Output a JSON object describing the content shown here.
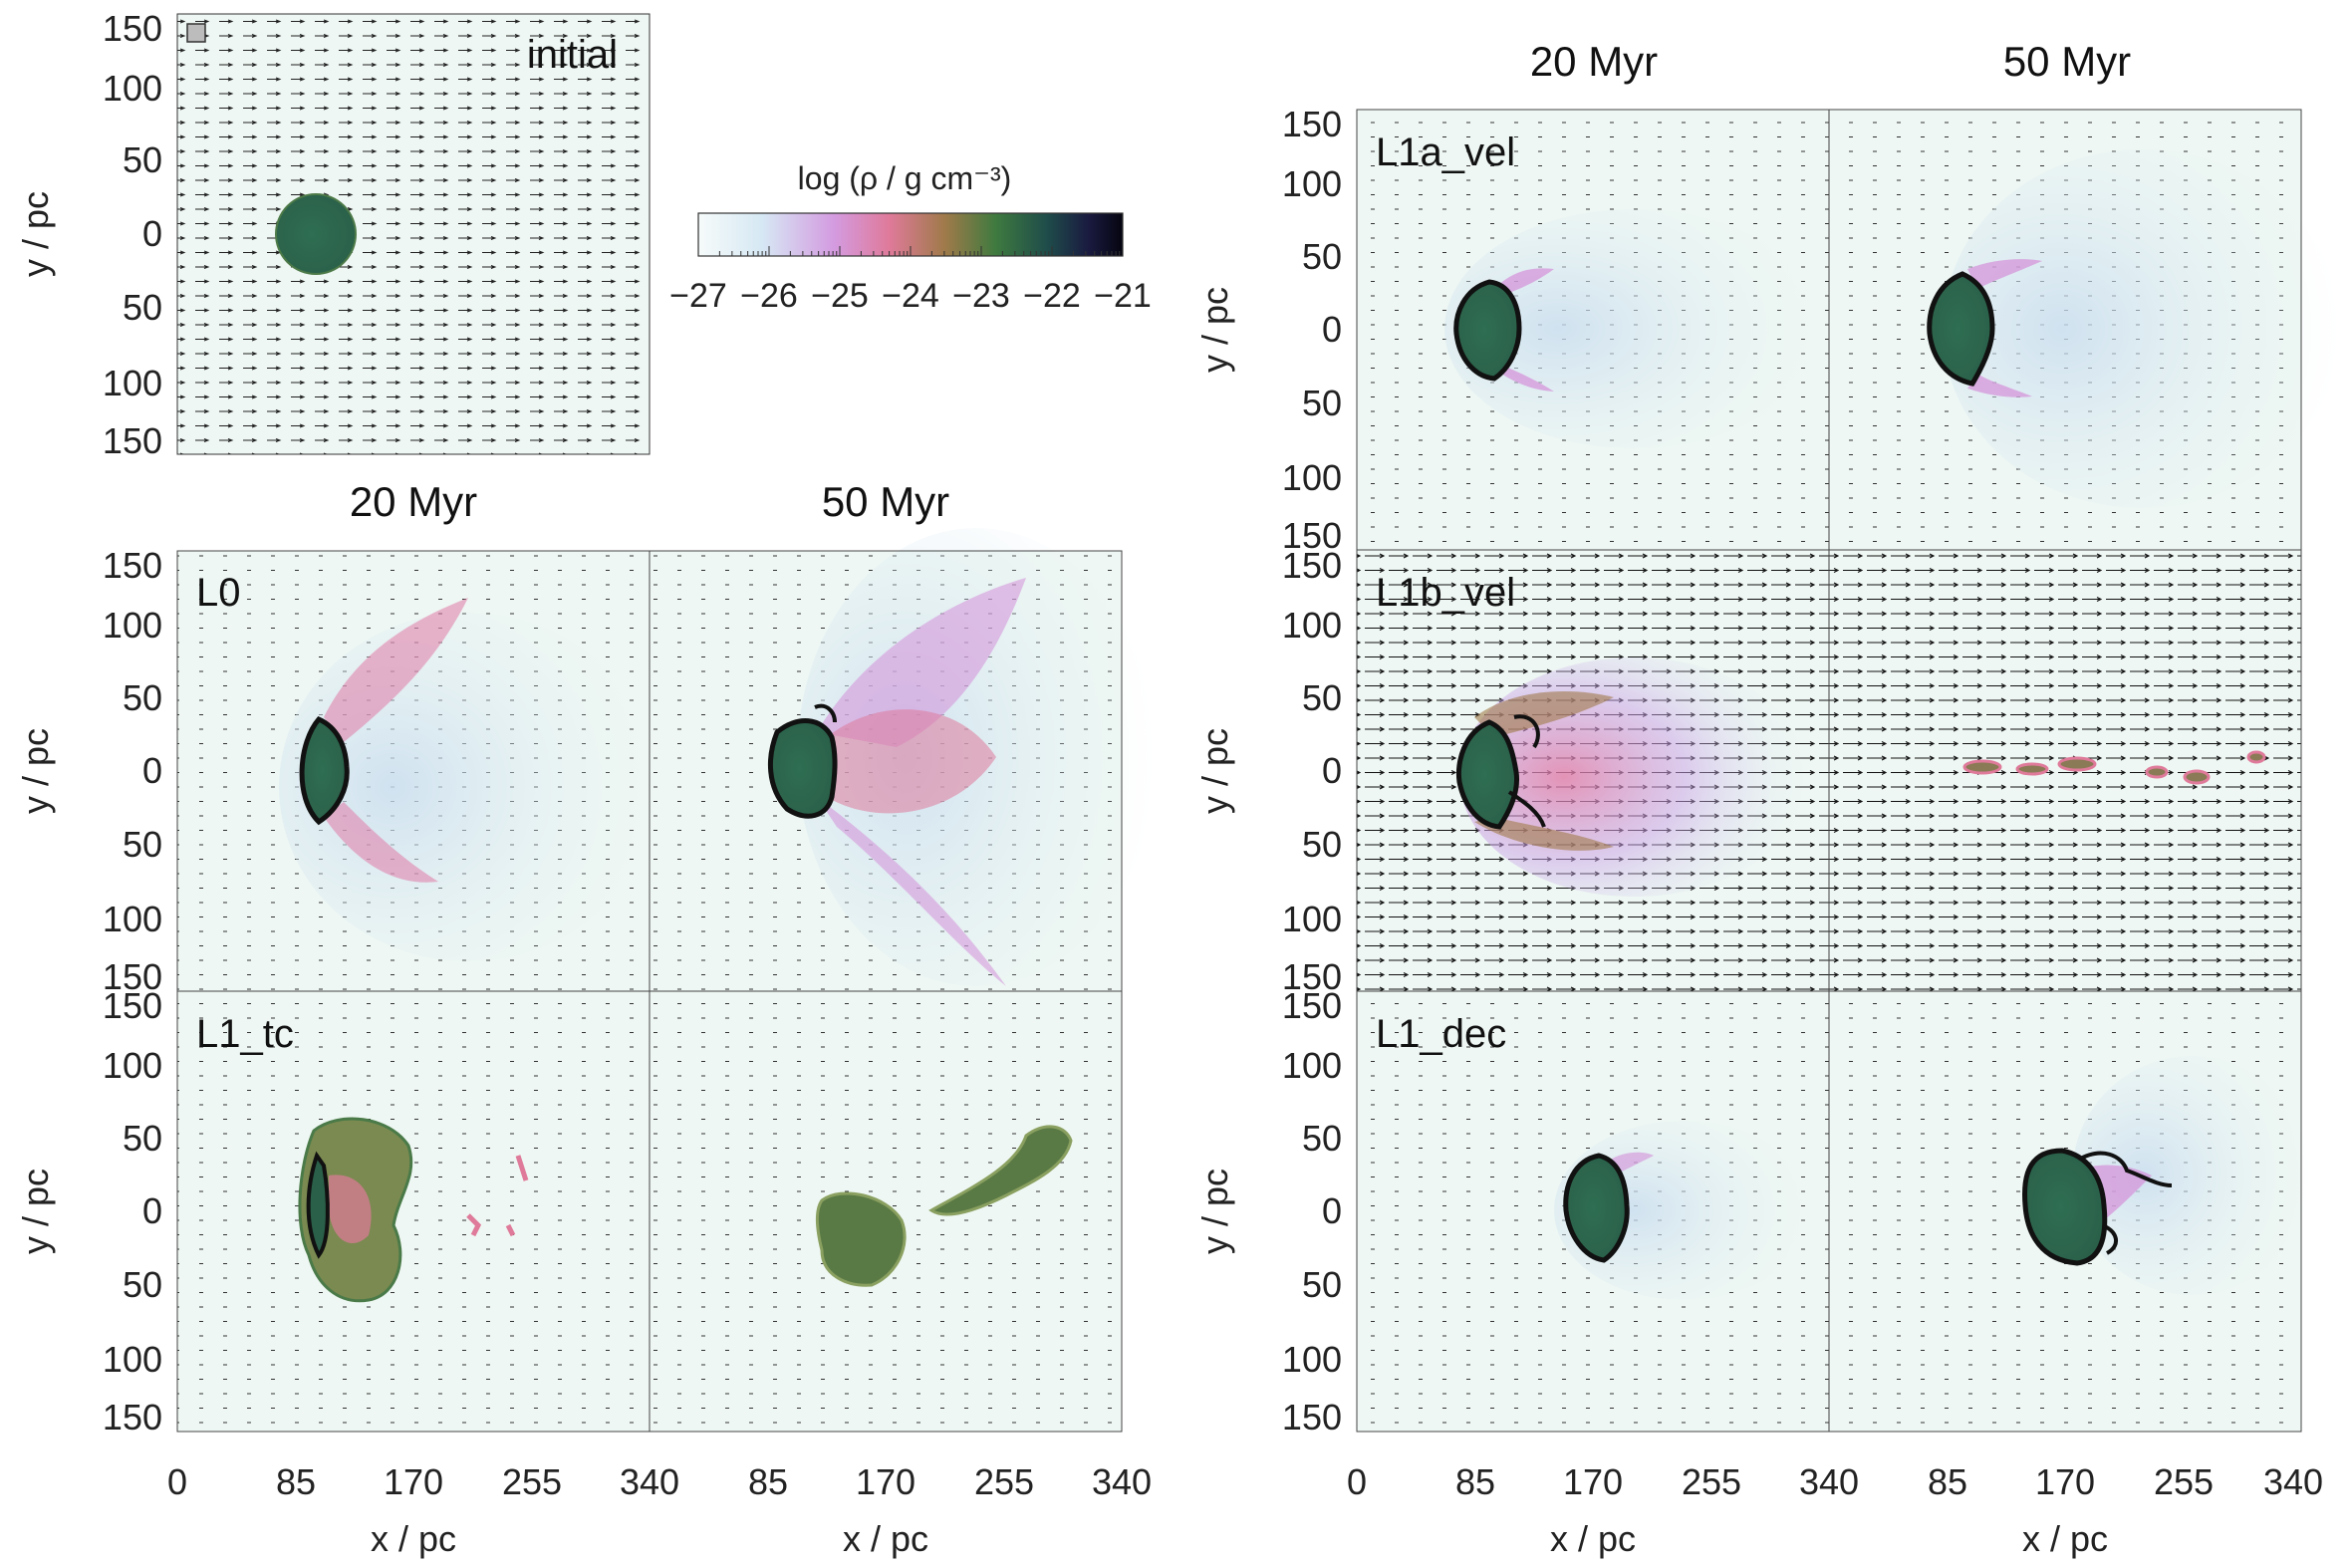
{
  "figure": {
    "top_panel_label": "initial",
    "colorbar": {
      "label": "log (ρ / g cm⁻³)",
      "ticks": [
        "−27",
        "−26",
        "−25",
        "−24",
        "−23",
        "−22",
        "−21"
      ]
    },
    "columns": {
      "left_1": "20 Myr",
      "left_2": "50 Myr",
      "right_1": "20 Myr",
      "right_2": "50 Myr"
    },
    "row_labels": {
      "l0": "L0",
      "l1tc": "L1_tc",
      "l1a": "L1a_vel",
      "l1b": "L1b_vel",
      "l1dec": "L1_dec"
    },
    "y_axis": {
      "label": "y / pc",
      "ticks": [
        "150",
        "100",
        "50",
        "0",
        "50",
        "100",
        "150"
      ]
    },
    "x_axis": {
      "label": "x / pc",
      "first_ticks": [
        "0",
        "85",
        "170",
        "255",
        "340"
      ],
      "second_ticks": [
        "85",
        "170",
        "255",
        "340"
      ]
    }
  },
  "chart_data": {
    "type": "heatmap",
    "quantity": "log density",
    "colorbar_range": [
      -27,
      -21
    ],
    "x_range_pc": [
      0,
      340
    ],
    "y_range_pc": [
      -150,
      150
    ],
    "panels": [
      {
        "label": "initial",
        "cloud_center_pc": [
          100,
          0
        ],
        "cloud_radius_pc": 28
      },
      {
        "label": "L0",
        "time": "20 Myr",
        "cloud_center_pc": [
          100,
          0
        ]
      },
      {
        "label": "L0",
        "time": "50 Myr",
        "cloud_center_pc": [
          100,
          0
        ]
      },
      {
        "label": "L1_tc",
        "time": "20 Myr",
        "cloud_center_pc": [
          100,
          0
        ]
      },
      {
        "label": "L1_tc",
        "time": "50 Myr",
        "cloud_center_pc": [
          170,
          0
        ]
      },
      {
        "label": "L1a_vel",
        "time": "20 Myr",
        "cloud_center_pc": [
          100,
          0
        ]
      },
      {
        "label": "L1a_vel",
        "time": "50 Myr",
        "cloud_center_pc": [
          100,
          0
        ]
      },
      {
        "label": "L1b_vel",
        "time": "20 Myr",
        "cloud_center_pc": [
          100,
          0
        ]
      },
      {
        "label": "L1b_vel",
        "time": "50 Myr",
        "cloud_center_pc": [
          200,
          0
        ]
      },
      {
        "label": "L1_dec",
        "time": "20 Myr",
        "cloud_center_pc": [
          170,
          0
        ]
      },
      {
        "label": "L1_dec",
        "time": "50 Myr",
        "cloud_center_pc": [
          170,
          0
        ]
      }
    ]
  }
}
